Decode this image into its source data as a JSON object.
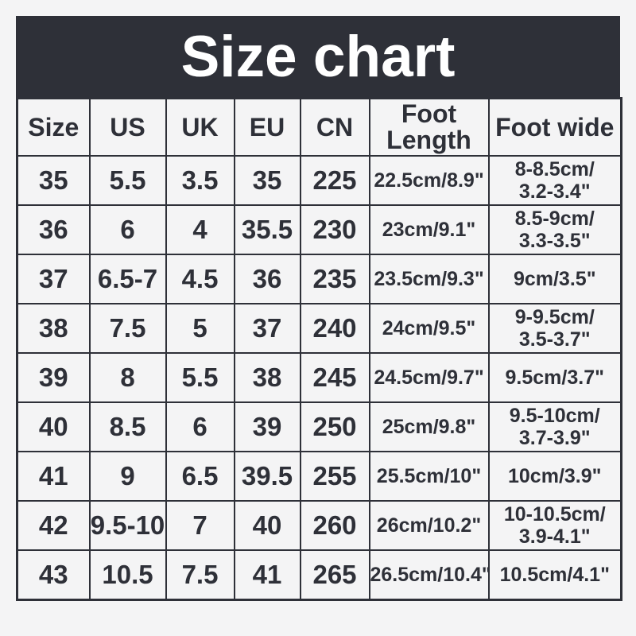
{
  "title": {
    "text": "Size chart",
    "bar_color": "#2e3038",
    "text_color": "#ffffff"
  },
  "page": {
    "background_color": "#f4f4f5",
    "border_color": "#2e3038"
  },
  "table": {
    "headers": [
      "Size",
      "US",
      "UK",
      "EU",
      "CN",
      "Foot\nLength",
      "Foot wide"
    ],
    "rows": [
      [
        "35",
        "5.5",
        "3.5",
        "35",
        "225",
        "22.5cm/8.9\"",
        "8-8.5cm/\n3.2-3.4\""
      ],
      [
        "36",
        "6",
        "4",
        "35.5",
        "230",
        "23cm/9.1\"",
        "8.5-9cm/\n3.3-3.5\""
      ],
      [
        "37",
        "6.5-7",
        "4.5",
        "36",
        "235",
        "23.5cm/9.3\"",
        "9cm/3.5\""
      ],
      [
        "38",
        "7.5",
        "5",
        "37",
        "240",
        "24cm/9.5\"",
        "9-9.5cm/\n3.5-3.7\""
      ],
      [
        "39",
        "8",
        "5.5",
        "38",
        "245",
        "24.5cm/9.7\"",
        "9.5cm/3.7\""
      ],
      [
        "40",
        "8.5",
        "6",
        "39",
        "250",
        "25cm/9.8\"",
        "9.5-10cm/\n3.7-3.9\""
      ],
      [
        "41",
        "9",
        "6.5",
        "39.5",
        "255",
        "25.5cm/10\"",
        "10cm/3.9\""
      ],
      [
        "42",
        "9.5-10",
        "7",
        "40",
        "260",
        "26cm/10.2\"",
        "10-10.5cm/\n3.9-4.1\""
      ],
      [
        "43",
        "10.5",
        "7.5",
        "41",
        "265",
        "26.5cm/10.4\"",
        "10.5cm/4.1\""
      ]
    ]
  }
}
